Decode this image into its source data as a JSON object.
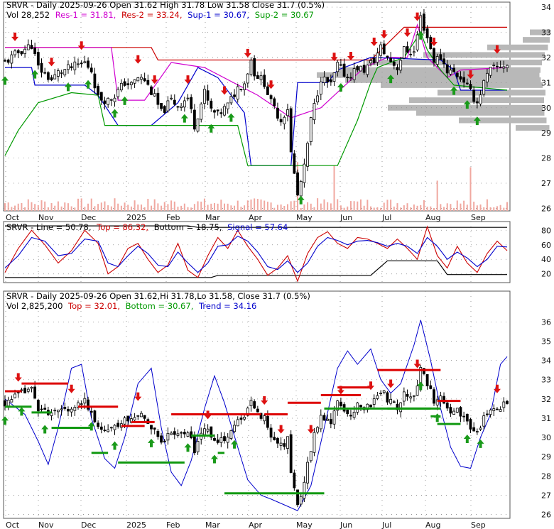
{
  "chart_data": [
    {
      "type": "candlestick",
      "panel": "price",
      "header": {
        "line1": [
          {
            "text": "SRVR - Daily 2025-09-26 Open 31.62  High 31.78  Low 31.58  Close 31.7 (0.5%)",
            "color": "#000000"
          }
        ],
        "line2": [
          {
            "text": "Vol 28,252",
            "color": "#000000"
          },
          {
            "text": "Res-1 = 31.81,",
            "color": "#d000d0"
          },
          {
            "text": "Res-2 = 33.24,",
            "color": "#cc0000"
          },
          {
            "text": "Sup-1 = 30.67,",
            "color": "#0000cc"
          },
          {
            "text": "Sup-2 = 30.67",
            "color": "#009900"
          }
        ]
      },
      "ylim": [
        25.9,
        34.2
      ],
      "yticks": [
        26,
        27,
        28,
        29,
        30,
        31,
        32,
        33,
        34
      ],
      "xticks": [
        "Oct",
        "Nov",
        "Dec",
        "2025",
        "Feb",
        "Mar",
        "Apr",
        "May",
        "Jun",
        "Jul",
        "Aug",
        "Sep"
      ],
      "close_path": [
        [
          0,
          31.8
        ],
        [
          4,
          32.2
        ],
        [
          8,
          32.5
        ],
        [
          10,
          31.6
        ],
        [
          14,
          31.1
        ],
        [
          16,
          31.4
        ],
        [
          20,
          31.6
        ],
        [
          24,
          31.8
        ],
        [
          26,
          31.5
        ],
        [
          28,
          30.4
        ],
        [
          31,
          30.3
        ],
        [
          33,
          30.5
        ],
        [
          36,
          31.0
        ],
        [
          38,
          30.9
        ],
        [
          40,
          31.2
        ],
        [
          42,
          31.1
        ],
        [
          45,
          30.4
        ],
        [
          47,
          29.8
        ],
        [
          50,
          30.3
        ],
        [
          52,
          30.1
        ],
        [
          55,
          30.4
        ],
        [
          57,
          29.3
        ],
        [
          60,
          30.6
        ],
        [
          62,
          29.9
        ],
        [
          64,
          29.7
        ],
        [
          67,
          30.1
        ],
        [
          70,
          30.8
        ],
        [
          72,
          31.0
        ],
        [
          74,
          31.9
        ],
        [
          75,
          31.4
        ],
        [
          78,
          31.0
        ],
        [
          80,
          30.2
        ],
        [
          83,
          29.5
        ],
        [
          85,
          30.0
        ],
        [
          86,
          28.2
        ],
        [
          88,
          26.5
        ],
        [
          90,
          27.6
        ],
        [
          92,
          29.5
        ],
        [
          95,
          31.2
        ],
        [
          98,
          30.9
        ],
        [
          100,
          31.7
        ],
        [
          103,
          31.2
        ],
        [
          106,
          31.6
        ],
        [
          108,
          31.5
        ],
        [
          111,
          31.9
        ],
        [
          113,
          32.4
        ],
        [
          115,
          32.0
        ],
        [
          118,
          31.6
        ],
        [
          120,
          32.3
        ],
        [
          123,
          32.2
        ],
        [
          125,
          33.6
        ],
        [
          127,
          32.8
        ],
        [
          129,
          31.9
        ],
        [
          131,
          32.0
        ],
        [
          133,
          31.5
        ],
        [
          135,
          31.4
        ],
        [
          138,
          31.1
        ],
        [
          140,
          30.6
        ],
        [
          142,
          30.2
        ],
        [
          144,
          31.0
        ],
        [
          146,
          31.5
        ],
        [
          148,
          31.6
        ],
        [
          150,
          31.7
        ],
        [
          151,
          31.7
        ]
      ],
      "volume": {
        "label": "Vol",
        "max": 2825200
      },
      "levels": {
        "res_1": 31.81,
        "res_2": 33.24,
        "sup_1": 30.67,
        "sup_2": 30.67
      },
      "arrows": {
        "up": 30,
        "down": 27
      }
    },
    {
      "type": "line",
      "panel": "oscillator",
      "header": [
        {
          "text": "SRVR - Line = 50.78,",
          "color": "#000000"
        },
        {
          "text": "Top = 86.32,",
          "color": "#cc0000"
        },
        {
          "text": "Bottom = 18.75,",
          "color": "#000000"
        },
        {
          "text": "Signal = 57.64",
          "color": "#0000cc"
        }
      ],
      "ylim": [
        8,
        92
      ],
      "yticks": [
        20,
        40,
        60,
        80
      ],
      "series": [
        {
          "name": "Line",
          "color": "#cc0000",
          "values": [
            [
              0,
              22
            ],
            [
              4,
              55
            ],
            [
              8,
              80
            ],
            [
              12,
              60
            ],
            [
              16,
              35
            ],
            [
              20,
              52
            ],
            [
              24,
              80
            ],
            [
              28,
              62
            ],
            [
              31,
              20
            ],
            [
              34,
              30
            ],
            [
              37,
              55
            ],
            [
              40,
              62
            ],
            [
              43,
              40
            ],
            [
              46,
              22
            ],
            [
              49,
              32
            ],
            [
              52,
              62
            ],
            [
              55,
              25
            ],
            [
              58,
              15
            ],
            [
              61,
              45
            ],
            [
              64,
              70
            ],
            [
              67,
              55
            ],
            [
              70,
              80
            ],
            [
              73,
              58
            ],
            [
              76,
              40
            ],
            [
              79,
              18
            ],
            [
              82,
              28
            ],
            [
              85,
              45
            ],
            [
              88,
              10
            ],
            [
              91,
              48
            ],
            [
              94,
              70
            ],
            [
              97,
              78
            ],
            [
              100,
              62
            ],
            [
              103,
              55
            ],
            [
              106,
              70
            ],
            [
              109,
              68
            ],
            [
              112,
              62
            ],
            [
              115,
              55
            ],
            [
              118,
              68
            ],
            [
              121,
              55
            ],
            [
              124,
              40
            ],
            [
              127,
              85
            ],
            [
              130,
              45
            ],
            [
              133,
              28
            ],
            [
              136,
              58
            ],
            [
              139,
              35
            ],
            [
              142,
              22
            ],
            [
              145,
              48
            ],
            [
              148,
              65
            ],
            [
              151,
              52
            ]
          ]
        },
        {
          "name": "Signal",
          "color": "#0000cc",
          "values": [
            [
              0,
              28
            ],
            [
              4,
              45
            ],
            [
              8,
              70
            ],
            [
              12,
              65
            ],
            [
              16,
              45
            ],
            [
              20,
              48
            ],
            [
              24,
              68
            ],
            [
              28,
              65
            ],
            [
              31,
              35
            ],
            [
              34,
              30
            ],
            [
              37,
              45
            ],
            [
              40,
              58
            ],
            [
              43,
              48
            ],
            [
              46,
              32
            ],
            [
              49,
              30
            ],
            [
              52,
              50
            ],
            [
              55,
              35
            ],
            [
              58,
              22
            ],
            [
              61,
              35
            ],
            [
              64,
              58
            ],
            [
              67,
              60
            ],
            [
              70,
              72
            ],
            [
              73,
              65
            ],
            [
              76,
              50
            ],
            [
              79,
              30
            ],
            [
              82,
              26
            ],
            [
              85,
              38
            ],
            [
              88,
              22
            ],
            [
              91,
              35
            ],
            [
              94,
              58
            ],
            [
              97,
              70
            ],
            [
              100,
              66
            ],
            [
              103,
              60
            ],
            [
              106,
              65
            ],
            [
              109,
              66
            ],
            [
              112,
              63
            ],
            [
              115,
              58
            ],
            [
              118,
              62
            ],
            [
              121,
              58
            ],
            [
              124,
              48
            ],
            [
              127,
              70
            ],
            [
              130,
              58
            ],
            [
              133,
              40
            ],
            [
              136,
              50
            ],
            [
              139,
              42
            ],
            [
              142,
              30
            ],
            [
              145,
              40
            ],
            [
              148,
              58
            ],
            [
              151,
              57
            ]
          ]
        }
      ]
    },
    {
      "type": "candlestick",
      "panel": "trend",
      "header": {
        "line1": [
          {
            "text": "SRVR - Daily 2025-09-26 Open 31.62,Hi 31.78,Lo 31.58, Close 31.7 (0.5%)",
            "color": "#000000"
          }
        ],
        "line2": [
          {
            "text": "Vol 2,825,200",
            "color": "#000000"
          },
          {
            "text": "Top = 32.01,",
            "color": "#cc0000"
          },
          {
            "text": "Bottom = 30.67,",
            "color": "#009900"
          },
          {
            "text": "Trend = 34.16",
            "color": "#0000cc"
          }
        ]
      },
      "ylim": [
        25.8,
        37.6
      ],
      "yticks": [
        26,
        27,
        28,
        29,
        30,
        31,
        32,
        33,
        34,
        35,
        36
      ],
      "xticks": [
        "Oct",
        "Nov",
        "Dec",
        "2025",
        "Feb",
        "Mar",
        "Apr",
        "May",
        "Jun",
        "Jul",
        "Aug",
        "Sep"
      ],
      "levels": {
        "top": 32.01,
        "bottom": 30.67,
        "trend": 34.16
      }
    }
  ]
}
